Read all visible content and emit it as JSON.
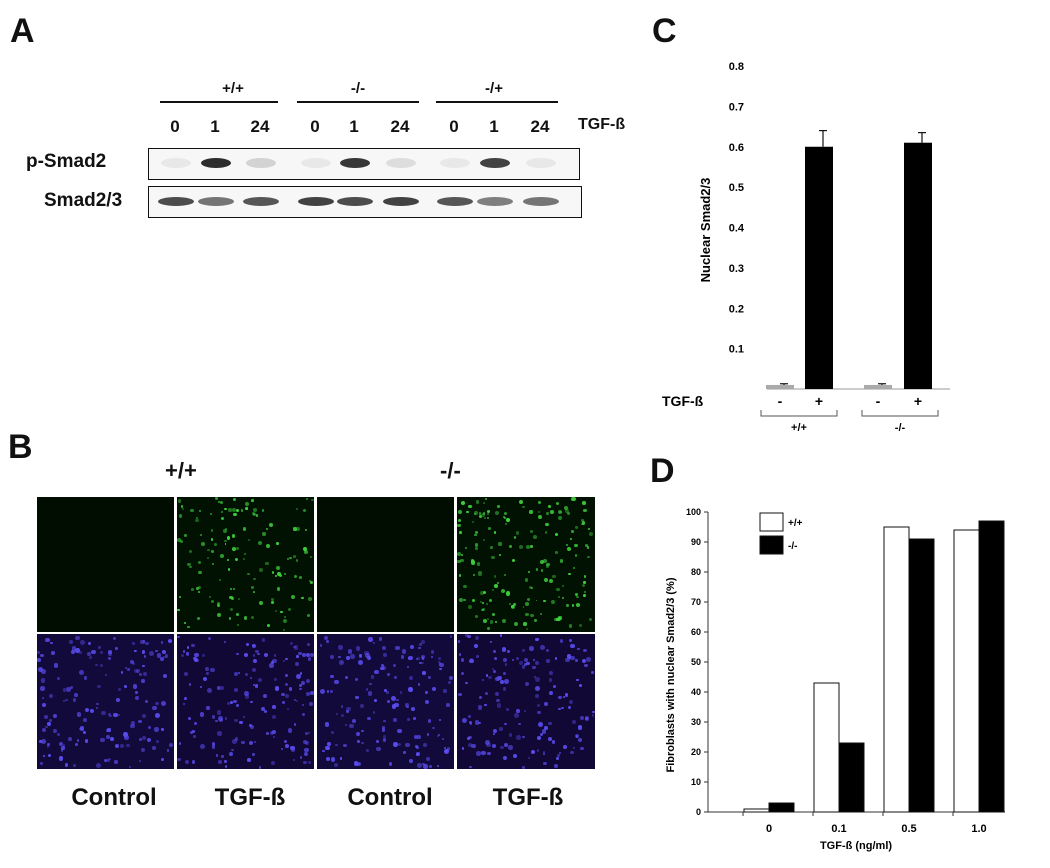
{
  "panel_labels": {
    "a": "A",
    "b": "B",
    "c": "C",
    "d": "D"
  },
  "panel_a": {
    "groups": [
      "+/+",
      "-/-",
      "-/+"
    ],
    "lanes": [
      "0",
      "1",
      "24",
      "0",
      "1",
      "24",
      "0",
      "1",
      "24"
    ],
    "treatment_label": "TGF-ß",
    "row_labels": [
      "p-Smad2",
      "Smad2/3"
    ],
    "psmad2_intensity": [
      0.05,
      0.95,
      0.15,
      0.05,
      0.9,
      0.1,
      0.05,
      0.85,
      0.05
    ],
    "smad23_intensity": [
      0.8,
      0.6,
      0.75,
      0.85,
      0.8,
      0.85,
      0.75,
      0.55,
      0.6
    ]
  },
  "panel_b": {
    "genotypes": [
      "+/+",
      "-/-"
    ],
    "captions": [
      "Control",
      "TGF-ß",
      "Control",
      "TGF-ß"
    ]
  },
  "chart_data": [
    {
      "type": "bar",
      "panel": "C",
      "ylabel": "Nuclear Smad2/3",
      "yticks": [
        "0.1",
        "0.2",
        "0.3",
        "0.4",
        "0.5",
        "0.6",
        "0.7",
        "0.8"
      ],
      "ylim": [
        0,
        0.8
      ],
      "treatment_label": "TGF-ß",
      "categories": [
        "-",
        "+",
        "-",
        "+"
      ],
      "groups": [
        "+/+",
        "-/-"
      ],
      "values": [
        0.01,
        0.6,
        0.01,
        0.61
      ],
      "errors": [
        0.003,
        0.04,
        0.003,
        0.025
      ],
      "bar_color": "#000000"
    },
    {
      "type": "bar",
      "panel": "D",
      "ylabel": "Fibroblasts with nuclear Smad2/3 (%)",
      "xlabel": "TGF-ß (ng/ml)",
      "yticks": [
        "0",
        "10",
        "20",
        "30",
        "40",
        "50",
        "60",
        "70",
        "80",
        "90",
        "100"
      ],
      "ylim": [
        0,
        100
      ],
      "categories": [
        "0",
        "0.1",
        "0.5",
        "1.0"
      ],
      "legend_position": "top-left",
      "series": [
        {
          "name": "+/+",
          "color": "#ffffff",
          "values": [
            1,
            43,
            95,
            94
          ]
        },
        {
          "name": "-/-",
          "color": "#000000",
          "values": [
            3,
            23,
            91,
            97
          ]
        }
      ]
    }
  ]
}
